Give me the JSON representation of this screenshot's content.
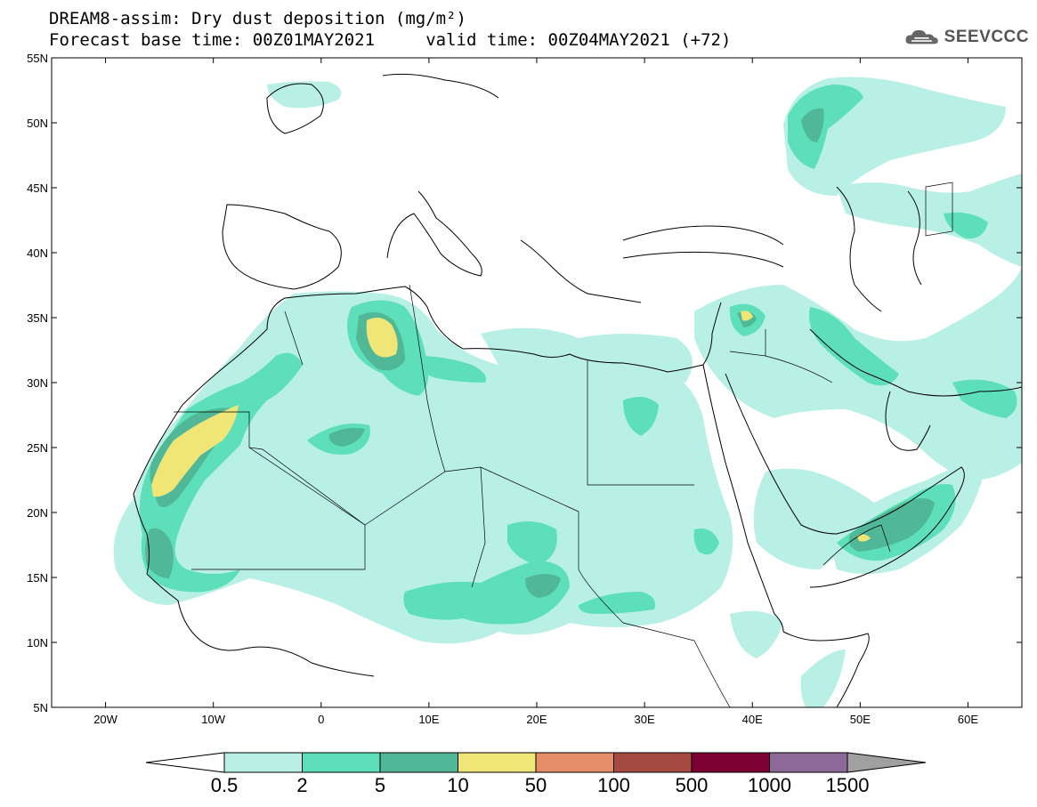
{
  "title": {
    "line1": "DREAM8-assim: Dry dust deposition (mg/m²)",
    "line2": "Forecast base time: 00Z01MAY2021     valid time: 00Z04MAY2021 (+72)"
  },
  "logo": {
    "text": "SEEVCCC",
    "icon": "cloud-logo-icon"
  },
  "map": {
    "projection": "lat-lon",
    "lon_range": [
      -25,
      65
    ],
    "lat_range": [
      5,
      55
    ],
    "lon_ticks": [
      {
        "value": -20,
        "label": "20W"
      },
      {
        "value": -10,
        "label": "10W"
      },
      {
        "value": 0,
        "label": "0"
      },
      {
        "value": 10,
        "label": "10E"
      },
      {
        "value": 20,
        "label": "20E"
      },
      {
        "value": 30,
        "label": "30E"
      },
      {
        "value": 40,
        "label": "40E"
      },
      {
        "value": 50,
        "label": "50E"
      },
      {
        "value": 60,
        "label": "60E"
      }
    ],
    "lat_ticks": [
      {
        "value": 55,
        "label": "55N"
      },
      {
        "value": 50,
        "label": "50N"
      },
      {
        "value": 45,
        "label": "45N"
      },
      {
        "value": 40,
        "label": "40N"
      },
      {
        "value": 35,
        "label": "35N"
      },
      {
        "value": 30,
        "label": "30N"
      },
      {
        "value": 25,
        "label": "25N"
      },
      {
        "value": 20,
        "label": "20N"
      },
      {
        "value": 15,
        "label": "15N"
      },
      {
        "value": 10,
        "label": "10N"
      },
      {
        "value": 5,
        "label": "5N"
      }
    ]
  },
  "colorbar": {
    "levels": [
      "0.5",
      "2",
      "5",
      "10",
      "50",
      "100",
      "500",
      "1000",
      "1500"
    ],
    "colors": [
      "#ffffff",
      "#b9f0e6",
      "#5de0b9",
      "#50b896",
      "#f0e678",
      "#e68c69",
      "#a54b41",
      "#7d0032",
      "#8c6996",
      "#a0a0a0"
    ]
  }
}
